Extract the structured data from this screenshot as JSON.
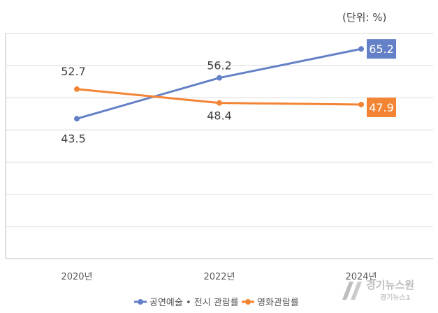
{
  "chart_data": {
    "type": "line",
    "unit_note": "(단위: %)",
    "categories": [
      "2020년",
      "2022년",
      "2024년"
    ],
    "ylim": [
      0,
      70
    ],
    "y_gridlines": [
      10,
      20,
      30,
      40,
      50,
      60,
      70
    ],
    "grid": true,
    "legend_position": "bottom",
    "series": [
      {
        "name": "공연예술 • 전시 관람률",
        "color": "#6480c6",
        "values": [
          43.5,
          56.2,
          65.2
        ],
        "labels": [
          "43.5",
          "56.2",
          "65.2"
        ]
      },
      {
        "name": "영화관람률",
        "color": "#f28434",
        "values": [
          52.7,
          48.4,
          47.9
        ],
        "labels": [
          "52.7",
          "48.4",
          "47.9"
        ]
      }
    ]
  },
  "watermark": {
    "main": "경기뉴스원",
    "sub": "경기뉴스1"
  }
}
